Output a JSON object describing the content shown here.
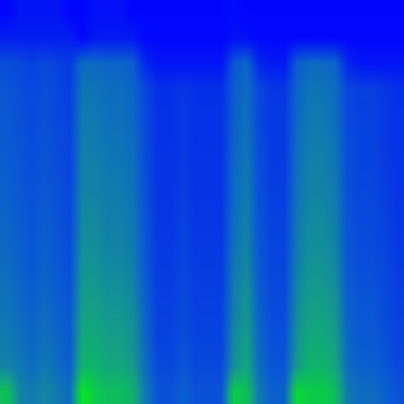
{
  "chart_data": {
    "type": "heatmap",
    "tick_labels": false,
    "zlim": [
      0,
      1
    ],
    "cells": [
      [
        0.02,
        0.08,
        0.08,
        0.08,
        0.08,
        0.02,
        0.02,
        0.06,
        0.06,
        0.06,
        0.02,
        0.02,
        0.02,
        0.02,
        0.02,
        0.02,
        0.02,
        0.02,
        0.05,
        0.02,
        0.02,
        0.02,
        0.02,
        0.02,
        0.02,
        0.02,
        0.02,
        0.02,
        0.02,
        0.02,
        0.02,
        0.02
      ],
      [
        0.12,
        0.12,
        0.12,
        0.12,
        0.12,
        0.12,
        0.03,
        0.1,
        0.1,
        0.1,
        0.1,
        0.03,
        0.03,
        0.03,
        0.03,
        0.03,
        0.03,
        0.03,
        0.06,
        0.06,
        0.03,
        0.03,
        0.03,
        0.03,
        0.03,
        0.03,
        0.03,
        0.03,
        0.03,
        0.03,
        0.03,
        0.03
      ],
      [
        0.3,
        0.28,
        0.25,
        0.28,
        0.25,
        0.22,
        0.41,
        0.41,
        0.39,
        0.39,
        0.36,
        0.15,
        0.08,
        0.08,
        0.08,
        0.08,
        0.08,
        0.08,
        0.33,
        0.39,
        0.15,
        0.1,
        0.1,
        0.36,
        0.41,
        0.41,
        0.39,
        0.15,
        0.08,
        0.08,
        0.08,
        0.08
      ],
      [
        0.33,
        0.3,
        0.27,
        0.3,
        0.27,
        0.24,
        0.45,
        0.45,
        0.42,
        0.42,
        0.39,
        0.27,
        0.18,
        0.18,
        0.21,
        0.18,
        0.18,
        0.18,
        0.36,
        0.42,
        0.27,
        0.21,
        0.21,
        0.39,
        0.45,
        0.45,
        0.42,
        0.27,
        0.24,
        0.24,
        0.21,
        0.18
      ],
      [
        0.34,
        0.31,
        0.28,
        0.31,
        0.28,
        0.25,
        0.47,
        0.47,
        0.43,
        0.43,
        0.4,
        0.28,
        0.19,
        0.19,
        0.22,
        0.19,
        0.19,
        0.19,
        0.37,
        0.43,
        0.28,
        0.22,
        0.22,
        0.4,
        0.47,
        0.47,
        0.43,
        0.28,
        0.25,
        0.25,
        0.22,
        0.19
      ],
      [
        0.35,
        0.32,
        0.29,
        0.32,
        0.29,
        0.26,
        0.48,
        0.48,
        0.45,
        0.45,
        0.42,
        0.29,
        0.19,
        0.19,
        0.22,
        0.19,
        0.19,
        0.19,
        0.38,
        0.45,
        0.29,
        0.22,
        0.22,
        0.42,
        0.48,
        0.48,
        0.45,
        0.29,
        0.26,
        0.26,
        0.22,
        0.19
      ],
      [
        0.36,
        0.33,
        0.3,
        0.33,
        0.3,
        0.26,
        0.5,
        0.5,
        0.46,
        0.46,
        0.43,
        0.3,
        0.2,
        0.2,
        0.23,
        0.2,
        0.2,
        0.2,
        0.4,
        0.46,
        0.3,
        0.23,
        0.23,
        0.43,
        0.5,
        0.5,
        0.46,
        0.3,
        0.26,
        0.26,
        0.23,
        0.2
      ],
      [
        0.37,
        0.34,
        0.31,
        0.34,
        0.31,
        0.27,
        0.51,
        0.51,
        0.48,
        0.48,
        0.44,
        0.31,
        0.2,
        0.2,
        0.24,
        0.2,
        0.2,
        0.2,
        0.41,
        0.48,
        0.31,
        0.24,
        0.24,
        0.44,
        0.51,
        0.51,
        0.48,
        0.31,
        0.27,
        0.27,
        0.24,
        0.2
      ],
      [
        0.39,
        0.35,
        0.32,
        0.35,
        0.32,
        0.28,
        0.53,
        0.53,
        0.49,
        0.49,
        0.46,
        0.32,
        0.21,
        0.21,
        0.25,
        0.21,
        0.21,
        0.21,
        0.42,
        0.49,
        0.32,
        0.25,
        0.25,
        0.46,
        0.53,
        0.53,
        0.49,
        0.32,
        0.28,
        0.28,
        0.25,
        0.21
      ],
      [
        0.4,
        0.37,
        0.33,
        0.37,
        0.33,
        0.29,
        0.55,
        0.55,
        0.51,
        0.51,
        0.47,
        0.33,
        0.22,
        0.22,
        0.26,
        0.22,
        0.22,
        0.22,
        0.44,
        0.51,
        0.33,
        0.26,
        0.26,
        0.47,
        0.55,
        0.55,
        0.51,
        0.33,
        0.29,
        0.29,
        0.26,
        0.22
      ],
      [
        0.42,
        0.38,
        0.34,
        0.38,
        0.34,
        0.3,
        0.57,
        0.57,
        0.53,
        0.53,
        0.49,
        0.34,
        0.23,
        0.23,
        0.27,
        0.23,
        0.23,
        0.23,
        0.46,
        0.53,
        0.34,
        0.27,
        0.27,
        0.49,
        0.57,
        0.57,
        0.53,
        0.34,
        0.3,
        0.3,
        0.27,
        0.23
      ],
      [
        0.44,
        0.4,
        0.36,
        0.4,
        0.36,
        0.32,
        0.6,
        0.6,
        0.56,
        0.56,
        0.52,
        0.36,
        0.24,
        0.24,
        0.28,
        0.24,
        0.24,
        0.24,
        0.48,
        0.56,
        0.36,
        0.28,
        0.28,
        0.52,
        0.6,
        0.6,
        0.56,
        0.36,
        0.32,
        0.32,
        0.28,
        0.24
      ],
      [
        0.46,
        0.42,
        0.38,
        0.42,
        0.38,
        0.34,
        0.63,
        0.63,
        0.59,
        0.59,
        0.55,
        0.38,
        0.25,
        0.25,
        0.29,
        0.25,
        0.25,
        0.25,
        0.5,
        0.59,
        0.38,
        0.29,
        0.29,
        0.55,
        0.63,
        0.63,
        0.59,
        0.38,
        0.34,
        0.34,
        0.29,
        0.25
      ],
      [
        0.48,
        0.44,
        0.4,
        0.44,
        0.4,
        0.35,
        0.66,
        0.66,
        0.62,
        0.62,
        0.57,
        0.4,
        0.26,
        0.26,
        0.31,
        0.26,
        0.26,
        0.26,
        0.53,
        0.62,
        0.4,
        0.31,
        0.31,
        0.57,
        0.66,
        0.66,
        0.62,
        0.4,
        0.35,
        0.35,
        0.31,
        0.26
      ],
      [
        0.51,
        0.47,
        0.42,
        0.47,
        0.42,
        0.37,
        0.7,
        0.7,
        0.65,
        0.65,
        0.6,
        0.42,
        0.28,
        0.28,
        0.33,
        0.28,
        0.28,
        0.28,
        0.56,
        0.65,
        0.42,
        0.33,
        0.33,
        0.6,
        0.7,
        0.7,
        0.65,
        0.42,
        0.37,
        0.37,
        0.33,
        0.28
      ],
      [
        0.75,
        0.53,
        0.47,
        0.53,
        0.47,
        0.42,
        0.9,
        0.79,
        0.74,
        0.74,
        0.68,
        0.47,
        0.32,
        0.32,
        0.37,
        0.32,
        0.32,
        0.32,
        0.8,
        0.74,
        0.47,
        0.37,
        0.37,
        0.85,
        0.79,
        0.79,
        0.74,
        0.47,
        0.42,
        0.42,
        0.37,
        0.32
      ]
    ]
  }
}
